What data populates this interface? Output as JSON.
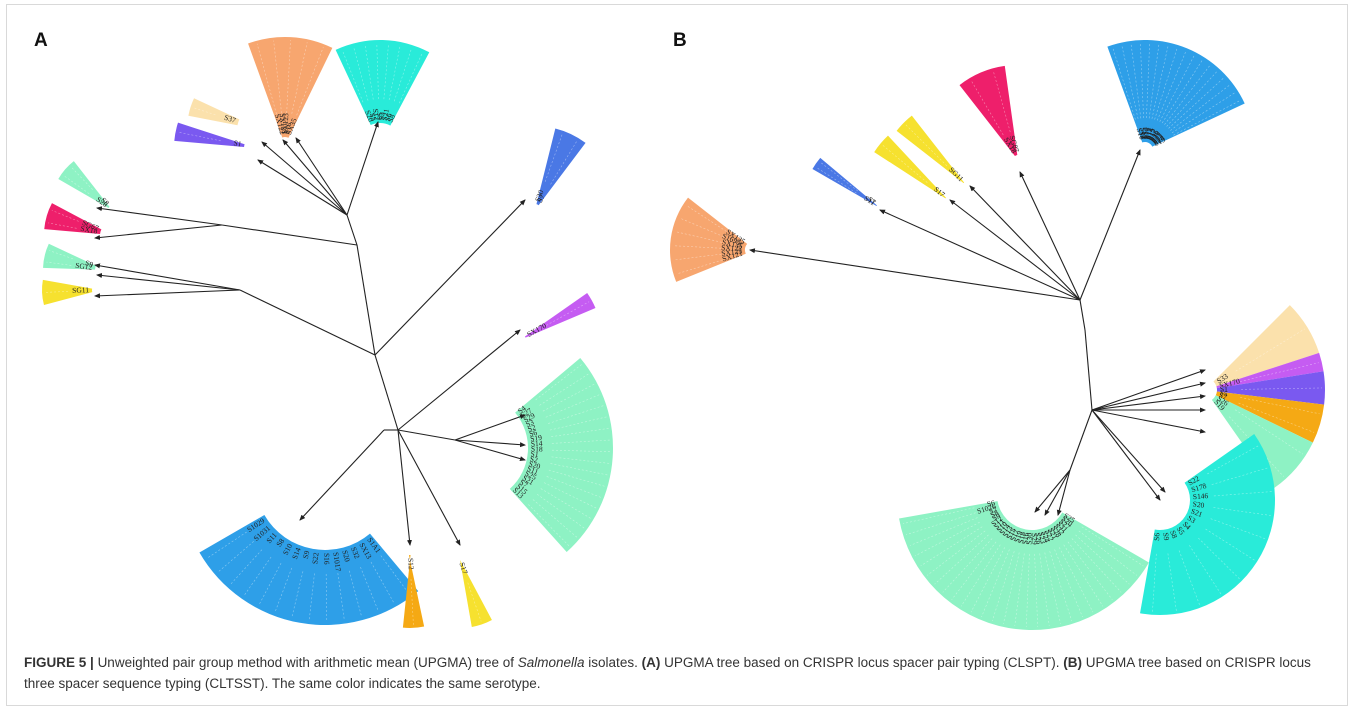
{
  "panels": {
    "a_label": "A",
    "b_label": "B"
  },
  "caption": {
    "figure_label": "FIGURE 5 |",
    "part1": "Unweighted pair group method with arithmetic mean (UPGMA) tree of ",
    "species": "Salmonella",
    "part2": " isolates. ",
    "a_tag": "(A)",
    "part3": " UPGMA tree based on CRISPR locus spacer pair typing (CLSPT). ",
    "b_tag": "(B)",
    "part4": " UPGMA tree based on CRISPR locus three spacer sequence typing (CLTSST). The same color indicates the same serotype."
  },
  "colors": {
    "teal": "#29ebd9",
    "mint": "#8ef2c4",
    "orange_light": "#f7a66f",
    "cream": "#fbe1ac",
    "violet": "#7a59f0",
    "magenta": "#ee1f6b",
    "yellow": "#f6e12f",
    "royal_blue": "#4a78e5",
    "sky_blue": "#2e9fe8",
    "purple": "#c55cf2",
    "amber": "#f5a914"
  },
  "tree_a": {
    "wedges": [
      {
        "id": "a-teal-top",
        "color": "teal",
        "labels": [
          "S20",
          "S5",
          "S12",
          "S9",
          "S3",
          "S21",
          "S6",
          "S8"
        ]
      },
      {
        "id": "a-orange-top",
        "color": "orange_light",
        "labels": [
          "SX122",
          "SX121",
          "SX123",
          "S16",
          "SX35"
        ]
      },
      {
        "id": "a-cream",
        "color": "cream",
        "labels": [
          "S37"
        ]
      },
      {
        "id": "a-violet",
        "color": "violet",
        "labels": [
          "S1"
        ]
      },
      {
        "id": "a-royal-right",
        "color": "royal_blue",
        "labels": [
          "S30",
          "S7"
        ]
      },
      {
        "id": "a-purple-right",
        "color": "purple",
        "labels": [
          "SX170"
        ]
      },
      {
        "id": "a-mint-right",
        "color": "mint",
        "labels": [
          "S4",
          "S27",
          "S29",
          "S3",
          "S2",
          "S6",
          "S19",
          "S14",
          "S18",
          "S1",
          "S2",
          "S20",
          "S11",
          "S25",
          "S21",
          "S7",
          "S15",
          "S13"
        ]
      },
      {
        "id": "a-sky-bottom",
        "color": "sky_blue",
        "labels": [
          "S1A1",
          "SX13",
          "S32",
          "S20",
          "S1017",
          "S16",
          "S22",
          "S9",
          "S14",
          "S10",
          "S8",
          "S11",
          "S1031",
          "S1029"
        ]
      },
      {
        "id": "a-amber-bottom",
        "color": "amber",
        "labels": [
          "S12"
        ]
      },
      {
        "id": "a-yellow-bottom",
        "color": "yellow",
        "labels": [
          "S17"
        ]
      },
      {
        "id": "a-mint-left-1",
        "color": "mint",
        "labels": [
          "S26",
          "S8"
        ]
      },
      {
        "id": "a-magenta-left",
        "color": "magenta",
        "labels": [
          "SX18",
          "SG67"
        ]
      },
      {
        "id": "a-mint-left-2",
        "color": "mint",
        "labels": [
          "SG12",
          "S9"
        ]
      },
      {
        "id": "a-yellow-left",
        "color": "yellow",
        "labels": [
          "SG11"
        ]
      }
    ]
  },
  "tree_b": {
    "wedges": [
      {
        "id": "b-sky-top",
        "color": "sky_blue",
        "labels": [
          "S10",
          "S1",
          "S12",
          "S9",
          "S13",
          "S18",
          "S11",
          "S14",
          "S15",
          "S17",
          "S16",
          "S20",
          "S21",
          "S22",
          "S23",
          "S24",
          "S19"
        ]
      },
      {
        "id": "b-magenta-top",
        "color": "magenta",
        "labels": [
          "SX18",
          "SG87"
        ]
      },
      {
        "id": "b-yellow-top-1",
        "color": "yellow",
        "labels": [
          "SG11"
        ]
      },
      {
        "id": "b-yellow-top-2",
        "color": "yellow",
        "labels": [
          "S17"
        ]
      },
      {
        "id": "b-royal-top",
        "color": "royal_blue",
        "labels": [
          "S11",
          "S7"
        ]
      },
      {
        "id": "b-orange-left",
        "color": "orange_light",
        "labels": [
          "SX121",
          "SX123",
          "SX122",
          "SX135",
          "S1695c",
          "SX135"
        ]
      },
      {
        "id": "b-cream-right",
        "color": "cream",
        "labels": [
          "S33"
        ]
      },
      {
        "id": "b-purple-right",
        "color": "purple",
        "labels": [
          "SX170"
        ]
      },
      {
        "id": "b-violet-right",
        "color": "violet",
        "labels": [
          "S1"
        ]
      },
      {
        "id": "b-amber-right",
        "color": "amber",
        "labels": [
          "S5",
          "S7"
        ]
      },
      {
        "id": "b-mint-right",
        "color": "mint",
        "labels": [
          "S26",
          "S19"
        ]
      },
      {
        "id": "b-teal-bottom",
        "color": "teal",
        "labels": [
          "S22",
          "S178",
          "S146",
          "S20",
          "S21",
          "S3",
          "S4",
          "S5",
          "S8",
          "S9",
          "S6"
        ]
      },
      {
        "id": "b-mint-bottom",
        "color": "mint",
        "labels": [
          "S25",
          "S20",
          "S27",
          "S31",
          "S32",
          "S28",
          "S21",
          "S22",
          "S24",
          "S23",
          "S26",
          "S29",
          "S30",
          "S16",
          "S18",
          "S19",
          "S17",
          "S15",
          "S13",
          "S14",
          "S10",
          "S11",
          "S12",
          "S9",
          "S8",
          "S7",
          "S1026",
          "S6"
        ]
      }
    ]
  }
}
